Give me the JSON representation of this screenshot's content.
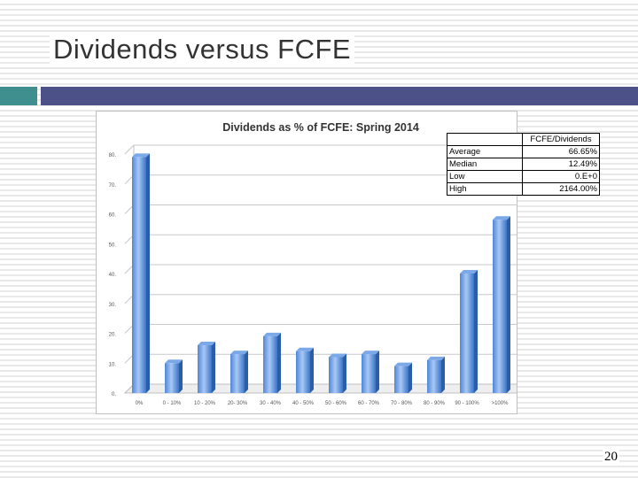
{
  "slide": {
    "title": "Dividends versus FCFE",
    "page_number": "20"
  },
  "stats_table": {
    "column_header": "FCFE/Dividends",
    "rows": [
      {
        "label": "Average",
        "value": "66.65%"
      },
      {
        "label": "Median",
        "value": "12.49%"
      },
      {
        "label": "Low",
        "value": "0.E+0"
      },
      {
        "label": "High",
        "value": "2164.00%"
      }
    ]
  },
  "colors": {
    "accent_teal": "#3f8f8f",
    "accent_purple": "#4c5288",
    "bar_light": "#a9c8f5",
    "bar_dark": "#3a75c9"
  },
  "chart_data": {
    "type": "bar",
    "title": "Dividends as % of  FCFE: Spring 2014",
    "categories": [
      "0%",
      "0 - 10%",
      "10 - 20%",
      "20- 30%",
      "30 - 40%",
      "40 - 50%",
      "50 - 60%",
      "60 - 70%",
      "70 - 80%",
      "80 - 90%",
      "90 - 100%",
      ">100%"
    ],
    "values": [
      79,
      10,
      16,
      13,
      19,
      14,
      12,
      13,
      9,
      11,
      40,
      58
    ],
    "ylim": [
      0,
      80
    ],
    "yticks": [
      "0.",
      "10.",
      "20.",
      "30.",
      "40.",
      "50.",
      "60.",
      "70.",
      "80."
    ],
    "grid": true,
    "style": "3d"
  }
}
